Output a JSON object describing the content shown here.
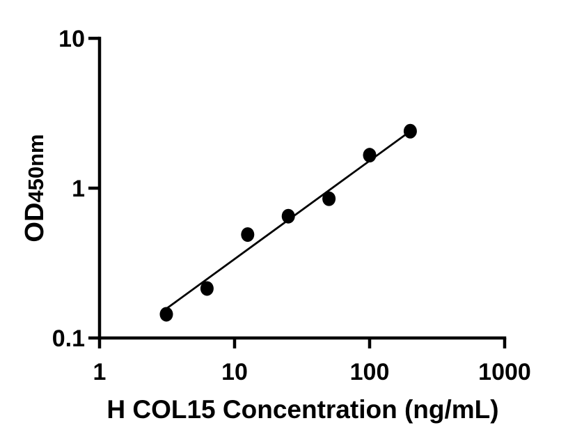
{
  "figure": {
    "background_color": "#ffffff",
    "axis_color": "#000000",
    "x_axis_label": "H COL15 Concentration (ng/mL)",
    "y_axis_label_main": "OD",
    "y_axis_label_sub": "450nm"
  },
  "chart_data": {
    "type": "scatter",
    "title": "",
    "xlabel": "H COL15 Concentration (ng/mL)",
    "ylabel": "OD450nm",
    "x_scale": "log",
    "y_scale": "log",
    "xlim": [
      1,
      1000
    ],
    "ylim": [
      0.1,
      10
    ],
    "x_ticks": [
      "1",
      "10",
      "100",
      "1000"
    ],
    "y_ticks": [
      "0.1",
      "1",
      "10"
    ],
    "grid": false,
    "legend_position": "none",
    "marker": "filled-circle",
    "marker_color": "#000000",
    "line_color": "#000000",
    "points": [
      {
        "x": 3.125,
        "y": 0.144
      },
      {
        "x": 6.25,
        "y": 0.214
      },
      {
        "x": 12.5,
        "y": 0.49
      },
      {
        "x": 25,
        "y": 0.65
      },
      {
        "x": 50,
        "y": 0.85
      },
      {
        "x": 100,
        "y": 1.66
      },
      {
        "x": 200,
        "y": 2.4
      }
    ],
    "fit_line": {
      "x1": 3.16,
      "y1": 0.158,
      "x2": 200,
      "y2": 2.4
    }
  }
}
